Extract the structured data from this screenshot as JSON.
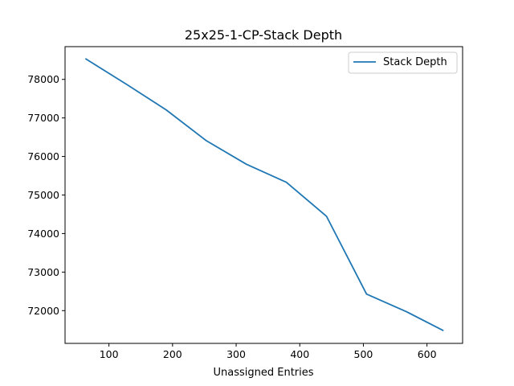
{
  "chart_data": {
    "type": "line",
    "title": "25x25-1-CP-Stack Depth",
    "xlabel": "Unassigned Entries",
    "ylabel": "",
    "xlim": [
      31,
      656
    ],
    "ylim": [
      71150,
      78850
    ],
    "xticks": [
      100,
      200,
      300,
      400,
      500,
      600
    ],
    "yticks": [
      72000,
      73000,
      74000,
      75000,
      76000,
      77000,
      78000
    ],
    "grid": false,
    "legend_position": "upper right",
    "series": [
      {
        "name": "Stack Depth",
        "color": "#1f77b4",
        "x": [
          63,
          127,
          190,
          253,
          316,
          379,
          442,
          505,
          568,
          626
        ],
        "y": [
          78540,
          77880,
          77210,
          76410,
          75800,
          75330,
          74450,
          72430,
          71970,
          71480
        ]
      }
    ]
  }
}
